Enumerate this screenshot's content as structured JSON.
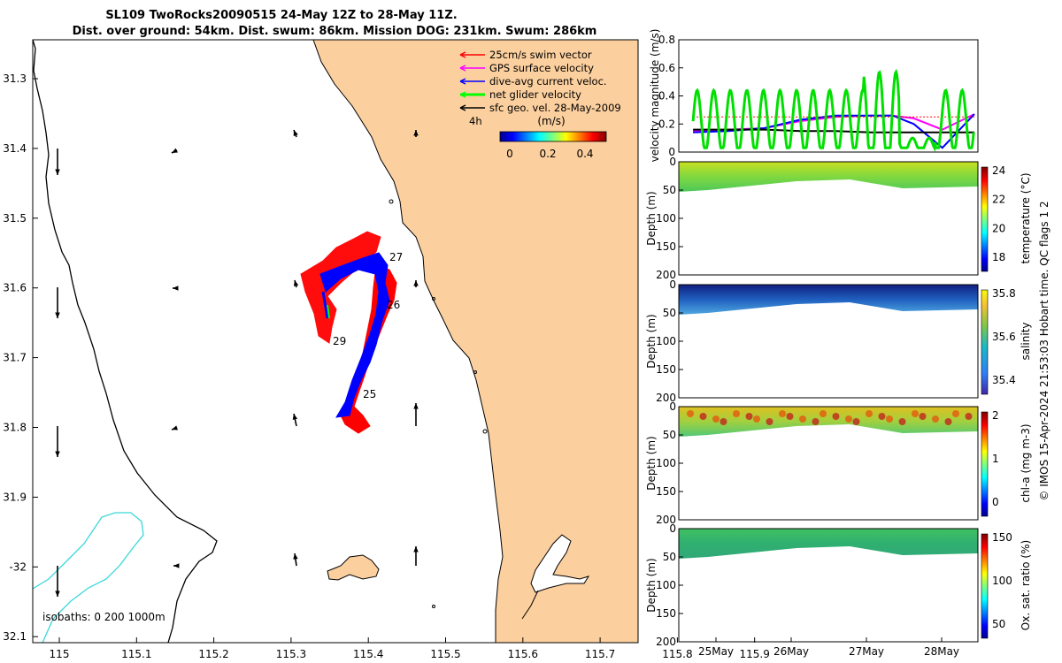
{
  "title": {
    "line1": "SL109 TwoRocks20090515 24-May 12Z to 28-May 11Z.",
    "line2": "Dist. over ground: 54km. Dist. swum: 86km. Mission DOG: 231km. Swum: 286km"
  },
  "map": {
    "lon_ticks": [
      "115",
      "115.1",
      "115.2",
      "115.3",
      "115.4",
      "115.5",
      "115.6",
      "115.7",
      "115.8",
      "115.9"
    ],
    "lat_ticks": [
      "31.3",
      "31.4",
      "31.5",
      "31.6",
      "31.7",
      "31.8",
      "31.9",
      "-32",
      "32.1"
    ],
    "legend": [
      {
        "label": "25cm/s swim vector",
        "color": "#ff0000"
      },
      {
        "label": "GPS surface velocity",
        "color": "#ff00ff"
      },
      {
        "label": "dive-avg current veloc.",
        "color": "#0000ff"
      },
      {
        "label": "net glider velocity",
        "color": "#00ff00"
      },
      {
        "label": "sfc geo. vel. 28-May-2009",
        "color": "#000000"
      }
    ],
    "vector_scale_label": "4h",
    "colorbar_unit": "(m/s)",
    "colorbar_ticks": [
      "0",
      "0.2",
      "0.4"
    ],
    "day_labels": [
      "27",
      "26",
      "29",
      "25"
    ],
    "isobath_text": "isobaths: 0   200  1000m",
    "colors": {
      "land": "#fbcf9e",
      "coast": "#000000",
      "isobath200": "#3ad8da"
    }
  },
  "chart_data": [
    {
      "type": "line",
      "ylabel": "velocity magnitude (m/s)",
      "ylim": [
        0,
        0.8
      ],
      "yticks": [
        "0",
        "0.2",
        "0.4",
        "0.6",
        "0.8"
      ],
      "x_days": [
        24.5,
        25,
        25.5,
        26,
        26.5,
        27,
        27.3,
        27.6,
        28,
        28.45
      ],
      "series": [
        {
          "color": "#ff00ff",
          "values": [
            0.15,
            0.16,
            0.17,
            0.22,
            0.25,
            0.26,
            0.26,
            0.24,
            0.16,
            0.27
          ]
        },
        {
          "color": "#0000ff",
          "values": [
            0.14,
            0.15,
            0.17,
            0.23,
            0.26,
            0.26,
            0.26,
            0.2,
            0.03,
            0.27
          ]
        },
        {
          "color": "#000000",
          "values": [
            0.16,
            0.16,
            0.16,
            0.15,
            0.15,
            0.14,
            0.14,
            0.14,
            0.14,
            0.14
          ]
        },
        {
          "color": "#ff0000",
          "values": [
            0.25,
            0.25,
            0.25,
            0.25,
            0.25,
            0.25,
            0.25,
            0.25,
            0.25,
            0.25
          ]
        }
      ]
    },
    {
      "type": "heatmap",
      "ylabel": "Depth (m)",
      "colorbar_label": "temperature (°C)",
      "yticks": [
        "0",
        "50",
        "100",
        "150",
        "200"
      ],
      "colorbar_ticks": [
        "18",
        "20",
        "22",
        "24"
      ]
    },
    {
      "type": "heatmap",
      "ylabel": "Depth (m)",
      "colorbar_label": "salinity",
      "yticks": [
        "0",
        "50",
        "100",
        "150",
        "200"
      ],
      "colorbar_ticks": [
        "35.4",
        "35.6",
        "35.8"
      ]
    },
    {
      "type": "heatmap",
      "ylabel": "Depth (m)",
      "colorbar_label": "chl-a (mg m-3)",
      "yticks": [
        "0",
        "50",
        "100",
        "150",
        "200"
      ],
      "colorbar_ticks": [
        "0",
        "1",
        "2"
      ]
    },
    {
      "type": "heatmap",
      "ylabel": "Depth (m)",
      "colorbar_label": "Ox. sat. ratio (%)",
      "yticks": [
        "0",
        "50",
        "100",
        "150",
        "200"
      ],
      "colorbar_ticks": [
        "50",
        "100",
        "150"
      ],
      "xticks": [
        "25May",
        "26May",
        "27May",
        "28May"
      ]
    }
  ],
  "credit": "© IMOS 15-Apr-2024 21:53:03 Hobart time. QC flags 1  2"
}
